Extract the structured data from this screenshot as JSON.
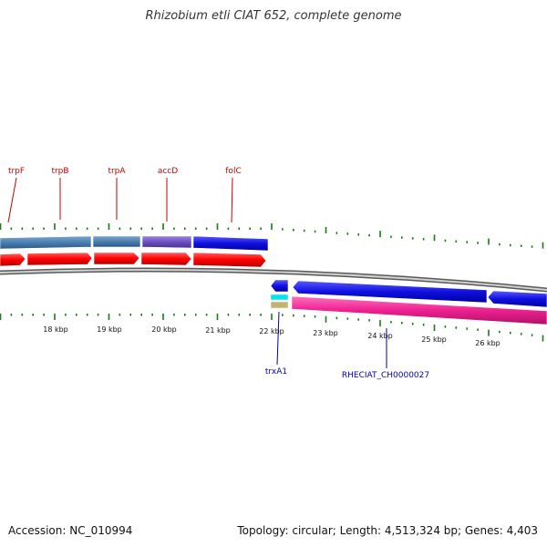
{
  "map": {
    "title": "Rhizobium etli CIAT 652, complete genome",
    "accession": "Accession: NC_010994",
    "topology": "Topology: circular; Length: 4,513,324 bp; Genes: 4,403"
  },
  "scale_labels": [
    "18 kbp",
    "19 kbp",
    "20 kbp",
    "21 kbp",
    "22 kbp",
    "23 kbp",
    "24 kbp",
    "25 kbp",
    "26 kbp"
  ],
  "gene_labels_top": [
    "trpF",
    "trpB",
    "trpA",
    "accD",
    "folC"
  ],
  "gene_labels_bottom": [
    "trxA1",
    "RHECIAT_CH0000027"
  ],
  "colors": {
    "label_top": "#cc0000",
    "label_bottom": "#0000aa",
    "tick": "#1a7a1a",
    "backbone": "#808080",
    "cds_red": "#ff1a1a",
    "gene_steelblue": "#4a7fb0",
    "gene_purple": "#6a4fc0",
    "gene_blue": "#1010e0",
    "gene_cyan": "#00e5ee",
    "gene_tan": "#c8b070",
    "gene_pink": "#ee2090"
  },
  "icons": [
    "forward-arrow",
    "reverse-arrow"
  ]
}
